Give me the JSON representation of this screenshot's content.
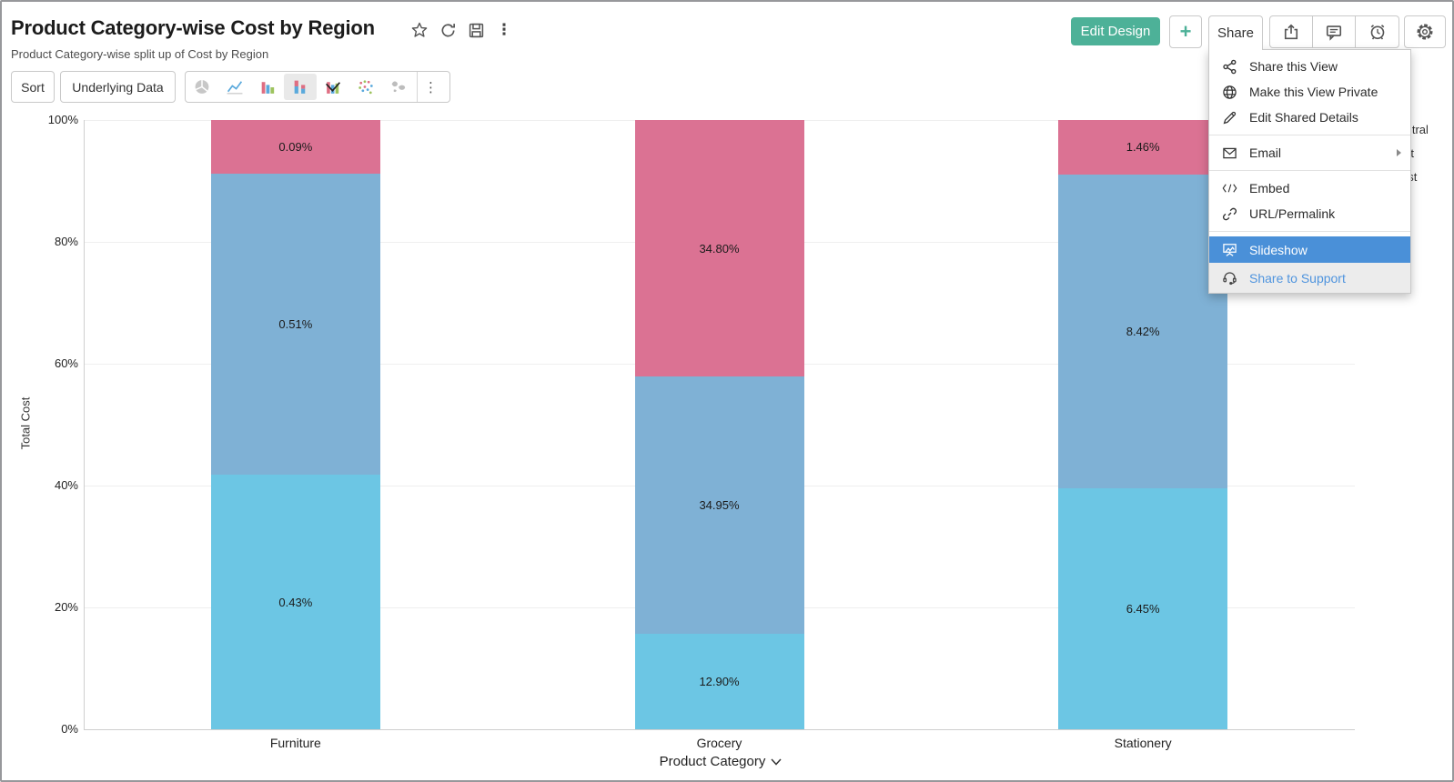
{
  "header": {
    "title": "Product Category-wise Cost by Region",
    "subtitle": "Product Category-wise split up of Cost by Region",
    "title_action_icons": [
      "star-icon",
      "refresh-icon",
      "save-icon",
      "kebab-menu-icon"
    ],
    "buttons": {
      "edit_design": "Edit Design",
      "add": "+",
      "share": "Share",
      "icon_buttons": [
        "export-icon",
        "comment-icon",
        "alert-icon",
        "settings-gear-icon"
      ]
    }
  },
  "toolbar": {
    "sort": "Sort",
    "underlying_data": "Underlying Data",
    "chart_types": [
      "pie",
      "line",
      "bar",
      "stacked-bar",
      "combo",
      "scatter",
      "map"
    ],
    "selected_chart_type": "stacked-bar",
    "more_label": "⋮"
  },
  "share_menu": {
    "items": [
      {
        "icon": "share-nodes-icon",
        "label": "Share this View",
        "divider_after": false
      },
      {
        "icon": "globe-icon",
        "label": "Make this View Private",
        "divider_after": false
      },
      {
        "icon": "pencil-icon",
        "label": "Edit Shared Details",
        "divider_after": true
      },
      {
        "icon": "envelope-icon",
        "label": "Email",
        "submenu": true,
        "divider_after": true
      },
      {
        "icon": "code-icon",
        "label": "Embed",
        "divider_after": false
      },
      {
        "icon": "link-icon",
        "label": "URL/Permalink",
        "divider_after": true
      },
      {
        "icon": "slideshow-icon",
        "label": "Slideshow",
        "state": "highlighted",
        "divider_after": false
      },
      {
        "icon": "headset-icon",
        "label": "Share to Support",
        "state": "footer",
        "divider_after": false
      }
    ],
    "highlight_color": "#4a90d8",
    "footer_link_color": "#4f94de"
  },
  "legend": {
    "position": "right",
    "items": [
      {
        "label": "Central",
        "color": "#db7293"
      },
      {
        "label": "East",
        "color": "#7fb1d5"
      },
      {
        "label": "West",
        "color": "#6cc6e4"
      }
    ]
  },
  "chart_data": {
    "type": "bar",
    "subtype": "100%-stacked-column",
    "title": "Product Category-wise Cost by Region",
    "xlabel": "Product Category",
    "ylabel": "Total Cost",
    "categories": [
      "Furniture",
      "Grocery",
      "Stationery"
    ],
    "series": [
      {
        "name": "Central",
        "color": "#db7293",
        "values": [
          0.09,
          34.8,
          1.46
        ],
        "labels": [
          "0.09%",
          "34.80%",
          "1.46%"
        ]
      },
      {
        "name": "East",
        "color": "#7fb1d5",
        "values": [
          0.51,
          34.95,
          8.42
        ],
        "labels": [
          "0.51%",
          "34.95%",
          "8.42%"
        ]
      },
      {
        "name": "West",
        "color": "#6cc6e4",
        "values": [
          0.43,
          12.9,
          6.45
        ],
        "labels": [
          "0.43%",
          "12.90%",
          "6.45%"
        ]
      }
    ],
    "values_unit": "percent of grand total cost",
    "stack_order": "top-to-bottom (first series on top)",
    "yticks": [
      "100%",
      "80%",
      "60%",
      "40%",
      "20%",
      "0%"
    ],
    "ylim": [
      0,
      100
    ],
    "grid": true,
    "legend_position": "right"
  },
  "colors": {
    "accent_green": "#4db198",
    "menu_highlight": "#4a90d8",
    "border_gray": "#c9c9c9"
  }
}
